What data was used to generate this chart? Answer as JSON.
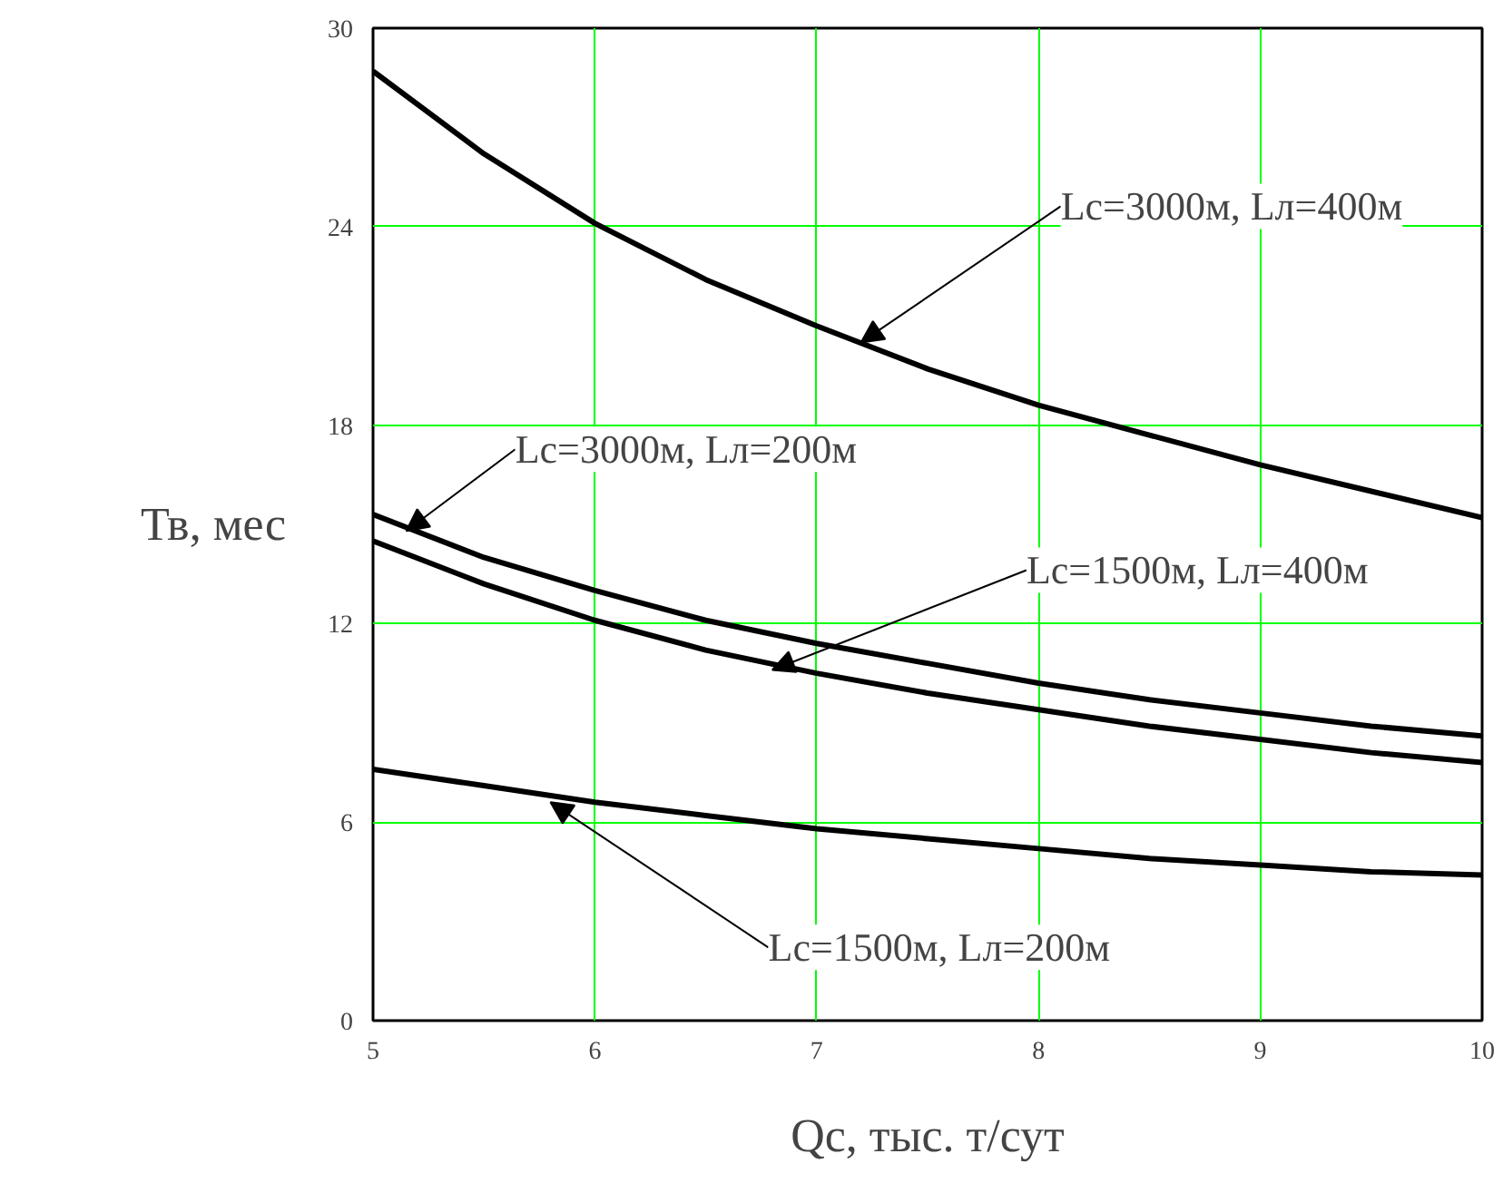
{
  "chart_data": {
    "type": "line",
    "xlabel": "Qc, тыс. т/сут",
    "ylabel": "Тв, мес",
    "x": [
      5,
      5.5,
      6,
      6.5,
      7,
      7.5,
      8,
      8.5,
      9,
      9.5,
      10
    ],
    "series": [
      {
        "color": "#000000",
        "values": [
          28.7,
          26.2,
          24.1,
          22.4,
          21.0,
          19.7,
          18.6,
          17.7,
          16.8,
          16.0,
          15.2
        ]
      },
      {
        "color": "#000000",
        "values": [
          15.3,
          14.0,
          13.0,
          12.1,
          11.4,
          10.8,
          10.2,
          9.7,
          9.3,
          8.9,
          8.6
        ]
      },
      {
        "color": "#000000",
        "values": [
          14.5,
          13.2,
          12.1,
          11.2,
          10.5,
          9.9,
          9.4,
          8.9,
          8.5,
          8.1,
          7.8
        ]
      },
      {
        "color": "#000000",
        "values": [
          7.6,
          7.1,
          6.6,
          6.2,
          5.8,
          5.5,
          5.2,
          4.9,
          4.7,
          4.5,
          4.4
        ]
      }
    ],
    "annotations": [
      {
        "text": "Lc=3000м, Lл=400м",
        "x": 7.2,
        "y": 20.5
      },
      {
        "text": "Lc=3000м, Lл=200м",
        "x": 5.15,
        "y": 14.8
      },
      {
        "text": "Lc=1500м, Lл=400м",
        "x": 6.8,
        "y": 10.6
      },
      {
        "text": "Lc=1500м, Lл=200м",
        "x": 5.8,
        "y": 6.6
      }
    ],
    "xlim": [
      5,
      10
    ],
    "ylim": [
      0,
      30
    ],
    "xticks": [
      5,
      6,
      7,
      8,
      9,
      10
    ],
    "yticks": [
      0,
      6,
      12,
      18,
      24,
      30
    ],
    "grid": true,
    "marker": "none",
    "line_style": "solid"
  }
}
